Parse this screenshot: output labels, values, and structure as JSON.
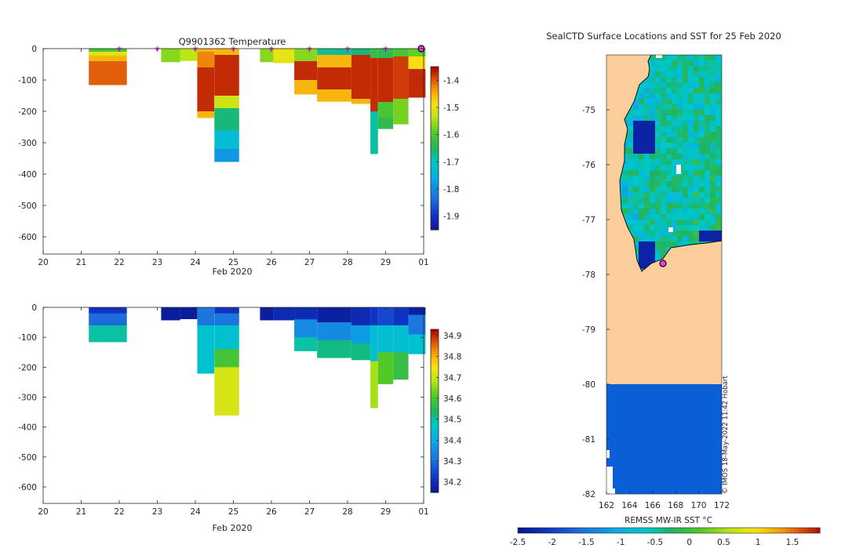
{
  "chart_data": [
    {
      "id": "temperature",
      "type": "heatmap",
      "title": "Q9901362  Temperature",
      "xlabel": "Feb 2020",
      "x_ticks": [
        "20",
        "21",
        "22",
        "23",
        "24",
        "25",
        "26",
        "27",
        "28",
        "29",
        "01"
      ],
      "y_ticks": [
        "0",
        "-100",
        "-200",
        "-300",
        "-400",
        "-500",
        "-600"
      ],
      "xlim": [
        20,
        30
      ],
      "ylim": [
        -655,
        0
      ],
      "colorbar": {
        "ticks": [
          "-1.4",
          "-1.5",
          "-1.6",
          "-1.7",
          "-1.8",
          "-1.9"
        ],
        "range": [
          -1.95,
          -1.35
        ]
      },
      "profile_markers_day": [
        22,
        23,
        24,
        25,
        26,
        27,
        28,
        29
      ],
      "current_marker_day": 30,
      "profiles": [
        {
          "x0": 21.2,
          "x1": 22.2,
          "depth": 115,
          "layers": [
            [
              0,
              10,
              -1.6
            ],
            [
              10,
              22,
              -1.5
            ],
            [
              22,
              40,
              -1.45
            ],
            [
              40,
              115,
              -1.4
            ]
          ]
        },
        {
          "x0": 23.1,
          "x1": 23.6,
          "depth": 42,
          "layers": [
            [
              0,
              42,
              -1.56
            ]
          ]
        },
        {
          "x0": 23.6,
          "x1": 24.05,
          "depth": 38,
          "layers": [
            [
              0,
              38,
              -1.53
            ]
          ]
        },
        {
          "x0": 24.05,
          "x1": 24.5,
          "depth": 220,
          "layers": [
            [
              0,
              10,
              -1.45
            ],
            [
              10,
              60,
              -1.42
            ],
            [
              60,
              200,
              -1.37
            ],
            [
              200,
              220,
              -1.45
            ]
          ]
        },
        {
          "x0": 24.5,
          "x1": 25.15,
          "depth": 360,
          "layers": [
            [
              0,
              20,
              -1.45
            ],
            [
              20,
              150,
              -1.37
            ],
            [
              150,
              190,
              -1.52
            ],
            [
              190,
              260,
              -1.66
            ],
            [
              260,
              320,
              -1.72
            ],
            [
              320,
              360,
              -1.78
            ]
          ]
        },
        {
          "x0": 25.7,
          "x1": 26.05,
          "depth": 42,
          "layers": [
            [
              0,
              42,
              -1.56
            ]
          ]
        },
        {
          "x0": 26.05,
          "x1": 26.6,
          "depth": 45,
          "layers": [
            [
              0,
              45,
              -1.5
            ]
          ]
        },
        {
          "x0": 26.6,
          "x1": 27.2,
          "depth": 145,
          "layers": [
            [
              0,
              40,
              -1.56
            ],
            [
              40,
              100,
              -1.37
            ],
            [
              100,
              145,
              -1.45
            ]
          ]
        },
        {
          "x0": 27.2,
          "x1": 28.1,
          "depth": 168,
          "layers": [
            [
              0,
              20,
              -1.67
            ],
            [
              20,
              60,
              -1.45
            ],
            [
              60,
              130,
              -1.37
            ],
            [
              130,
              168,
              -1.45
            ]
          ]
        },
        {
          "x0": 28.1,
          "x1": 28.6,
          "depth": 175,
          "layers": [
            [
              0,
              20,
              -1.66
            ],
            [
              20,
              160,
              -1.37
            ],
            [
              160,
              175,
              -1.45
            ]
          ]
        },
        {
          "x0": 28.6,
          "x1": 28.8,
          "depth": 335,
          "layers": [
            [
              0,
              30,
              -1.62
            ],
            [
              30,
              200,
              -1.37
            ],
            [
              200,
              335,
              -1.68
            ]
          ]
        },
        {
          "x0": 28.8,
          "x1": 29.2,
          "depth": 255,
          "layers": [
            [
              0,
              30,
              -1.63
            ],
            [
              30,
              170,
              -1.37
            ],
            [
              170,
              220,
              -1.6
            ],
            [
              220,
              255,
              -1.63
            ]
          ]
        },
        {
          "x0": 29.2,
          "x1": 29.6,
          "depth": 240,
          "layers": [
            [
              0,
              25,
              -1.6
            ],
            [
              25,
              160,
              -1.38
            ],
            [
              160,
              240,
              -1.57
            ]
          ]
        },
        {
          "x0": 29.6,
          "x1": 30.05,
          "depth": 155,
          "layers": [
            [
              0,
              25,
              -1.58
            ],
            [
              25,
              65,
              -1.48
            ],
            [
              65,
              155,
              -1.37
            ]
          ]
        }
      ]
    },
    {
      "id": "salinity",
      "type": "heatmap",
      "title": "",
      "xlabel": "Feb 2020",
      "x_ticks": [
        "20",
        "21",
        "22",
        "23",
        "24",
        "25",
        "26",
        "27",
        "28",
        "29",
        "01"
      ],
      "y_ticks": [
        "0",
        "-100",
        "-200",
        "-300",
        "-400",
        "-500",
        "-600"
      ],
      "xlim": [
        20,
        30
      ],
      "ylim": [
        -655,
        0
      ],
      "colorbar": {
        "ticks": [
          "34.9",
          "34.8",
          "34.7",
          "34.6",
          "34.5",
          "34.4",
          "34.3",
          "34.2"
        ],
        "range": [
          34.15,
          34.93
        ]
      },
      "profiles": [
        {
          "x0": 21.2,
          "x1": 22.2,
          "depth": 115,
          "layers": [
            [
              0,
              20,
              34.22
            ],
            [
              20,
              60,
              34.3
            ],
            [
              60,
              115,
              34.5
            ]
          ]
        },
        {
          "x0": 23.1,
          "x1": 23.6,
          "depth": 42,
          "layers": [
            [
              0,
              42,
              34.17
            ]
          ]
        },
        {
          "x0": 23.6,
          "x1": 24.05,
          "depth": 38,
          "layers": [
            [
              0,
              38,
              34.17
            ]
          ]
        },
        {
          "x0": 24.05,
          "x1": 24.5,
          "depth": 220,
          "layers": [
            [
              0,
              60,
              34.32
            ],
            [
              60,
              220,
              34.46
            ]
          ]
        },
        {
          "x0": 24.5,
          "x1": 25.15,
          "depth": 360,
          "layers": [
            [
              0,
              20,
              34.22
            ],
            [
              20,
              60,
              34.32
            ],
            [
              60,
              140,
              34.46
            ],
            [
              140,
              200,
              34.6
            ],
            [
              200,
              360,
              34.72
            ]
          ]
        },
        {
          "x0": 25.7,
          "x1": 26.05,
          "depth": 42,
          "layers": [
            [
              0,
              42,
              34.17
            ]
          ]
        },
        {
          "x0": 26.05,
          "x1": 26.6,
          "depth": 42,
          "layers": [
            [
              0,
              42,
              34.2
            ]
          ]
        },
        {
          "x0": 26.6,
          "x1": 27.2,
          "depth": 145,
          "layers": [
            [
              0,
              40,
              34.2
            ],
            [
              40,
              100,
              34.35
            ],
            [
              100,
              145,
              34.5
            ]
          ]
        },
        {
          "x0": 27.2,
          "x1": 28.1,
          "depth": 168,
          "layers": [
            [
              0,
              50,
              34.18
            ],
            [
              50,
              110,
              34.35
            ],
            [
              110,
              168,
              34.52
            ]
          ]
        },
        {
          "x0": 28.1,
          "x1": 28.6,
          "depth": 175,
          "layers": [
            [
              0,
              60,
              34.2
            ],
            [
              60,
              120,
              34.38
            ],
            [
              120,
              175,
              34.52
            ]
          ]
        },
        {
          "x0": 28.6,
          "x1": 28.8,
          "depth": 335,
          "layers": [
            [
              0,
              60,
              34.22
            ],
            [
              60,
              180,
              34.45
            ],
            [
              180,
              335,
              34.68
            ]
          ]
        },
        {
          "x0": 28.8,
          "x1": 29.2,
          "depth": 255,
          "layers": [
            [
              0,
              60,
              34.25
            ],
            [
              60,
              150,
              34.45
            ],
            [
              150,
              255,
              34.62
            ]
          ]
        },
        {
          "x0": 29.2,
          "x1": 29.6,
          "depth": 240,
          "layers": [
            [
              0,
              60,
              34.22
            ],
            [
              60,
              150,
              34.45
            ],
            [
              150,
              240,
              34.58
            ]
          ]
        },
        {
          "x0": 29.6,
          "x1": 30.05,
          "depth": 155,
          "layers": [
            [
              0,
              25,
              34.18
            ],
            [
              25,
              90,
              34.32
            ],
            [
              90,
              155,
              34.46
            ]
          ]
        }
      ]
    },
    {
      "id": "sst_map",
      "type": "heatmap",
      "title": "SealCTD Surface Locations and SST for 25 Feb 2020",
      "x_ticks": [
        "162",
        "164",
        "166",
        "168",
        "170",
        "172"
      ],
      "y_ticks": [
        "-75",
        "-76",
        "-77",
        "-78",
        "-79",
        "-80",
        "-81",
        "-82"
      ],
      "xlim": [
        162,
        172
      ],
      "ylim": [
        -82,
        -74.0
      ],
      "land_color": "#fbcd9b",
      "ice_color": "#0a5fd6",
      "seal_location": {
        "lon": 166.9,
        "lat": -77.8
      },
      "colorbar": {
        "label": "REMSS MW-IR SST °C",
        "ticks": [
          "-2.5",
          "-2",
          "-1.5",
          "-1",
          "-0.5",
          "0",
          "0.5",
          "1",
          "1.5"
        ],
        "range": [
          -2.5,
          1.9
        ]
      },
      "credit": "© IMOS 18-May-2022 11:42 Hobart"
    }
  ]
}
